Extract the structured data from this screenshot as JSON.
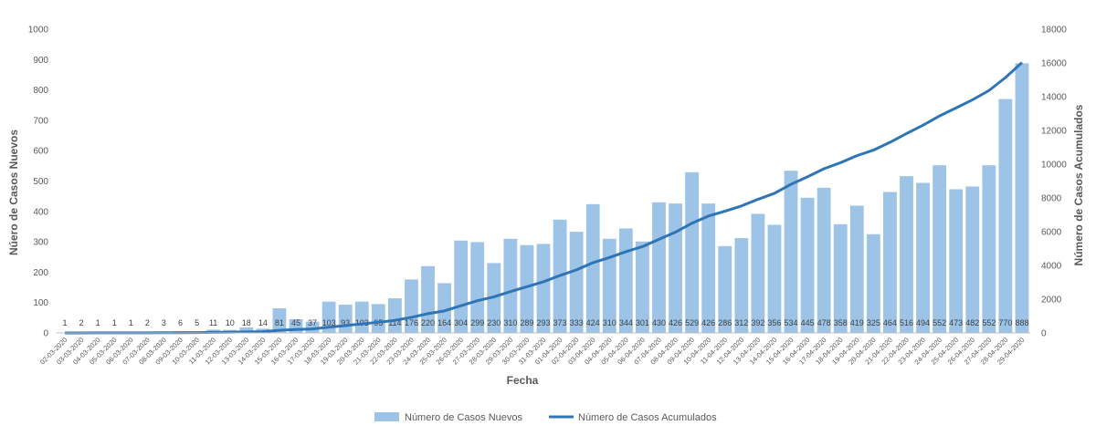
{
  "chart_data": {
    "type": "bar",
    "xlabel": "Fecha",
    "ylabel_left": "Núero de Casos Nuevos",
    "ylabel_right": "Número de Casos Acumulados",
    "ylim_left": [
      0,
      1000
    ],
    "ylim_right": [
      0,
      18000
    ],
    "yticks_left": [
      "0",
      "100",
      "200",
      "300",
      "400",
      "500",
      "600",
      "700",
      "800",
      "900",
      "1000"
    ],
    "yticks_right": [
      "0",
      "2000",
      "4000",
      "6000",
      "8000",
      "10000",
      "12000",
      "14000",
      "16000",
      "18000"
    ],
    "categories": [
      "02-03-2020",
      "03-03-2020",
      "04-03-2020",
      "05-03-2020",
      "06-03-2020",
      "07-03-2020",
      "08-03-2020",
      "09-03-2020",
      "10-03-2020",
      "11-03-2020",
      "12-03-2020",
      "13-03-2020",
      "14-03-2020",
      "15-03-2020",
      "16-03-2020",
      "17-03-2020",
      "18-03-2020",
      "19-03-2020",
      "20-03-2020",
      "21-03-2020",
      "22-03-2020",
      "23-03-2020",
      "24-03-2020",
      "25-03-2020",
      "26-03-2020",
      "27-03-2020",
      "28-03-2020",
      "29-03-2020",
      "30-03-2020",
      "31-03-2020",
      "01-04-2020",
      "02-04-2020",
      "03-04-2020",
      "04-04-2020",
      "05-04-2020",
      "06-04-2020",
      "07-04-2020",
      "08-04-2020",
      "09-04-2020",
      "10-04-2020",
      "11-04-2020",
      "12-04-2020",
      "13-04-2020",
      "14-04-2020",
      "15-04-2020",
      "16-04-2020",
      "17-04-2020",
      "18-04-2020",
      "19-04-2020",
      "20-04-2020",
      "21-04-2020",
      "22-04-2020",
      "23-04-2020",
      "24-04-2020",
      "25-04-2020",
      "26-04-2020",
      "27-04-2020",
      "28-04-2020",
      "29-04-2020"
    ],
    "series": [
      {
        "name": "Número de Casos Nuevos",
        "type": "bar",
        "axis": "left",
        "color": "#9DC3E6",
        "values": [
          1,
          2,
          1,
          1,
          1,
          2,
          3,
          6,
          5,
          11,
          10,
          18,
          14,
          81,
          45,
          37,
          103,
          93,
          103,
          95,
          114,
          176,
          220,
          164,
          304,
          299,
          230,
          310,
          289,
          293,
          373,
          333,
          424,
          310,
          344,
          301,
          430,
          426,
          529,
          426,
          286,
          312,
          392,
          356,
          534,
          445,
          478,
          358,
          419,
          325,
          464,
          516,
          494,
          552,
          473,
          482,
          552,
          770,
          888
        ]
      },
      {
        "name": "Número de Casos Acumulados",
        "type": "line",
        "axis": "right",
        "color": "#2E75B6",
        "values": [
          1,
          3,
          4,
          5,
          6,
          8,
          11,
          17,
          22,
          33,
          43,
          61,
          75,
          156,
          201,
          238,
          341,
          434,
          537,
          632,
          746,
          922,
          1142,
          1306,
          1610,
          1909,
          2139,
          2449,
          2738,
          3031,
          3404,
          3737,
          4161,
          4471,
          4815,
          5116,
          5546,
          5972,
          6501,
          6927,
          7213,
          7525,
          7917,
          8273,
          8807,
          9252,
          9730,
          10088,
          10507,
          10832,
          11296,
          11812,
          12306,
          12858,
          13331,
          13813,
          14365,
          15135,
          16023
        ]
      }
    ],
    "legend": "bottom"
  }
}
